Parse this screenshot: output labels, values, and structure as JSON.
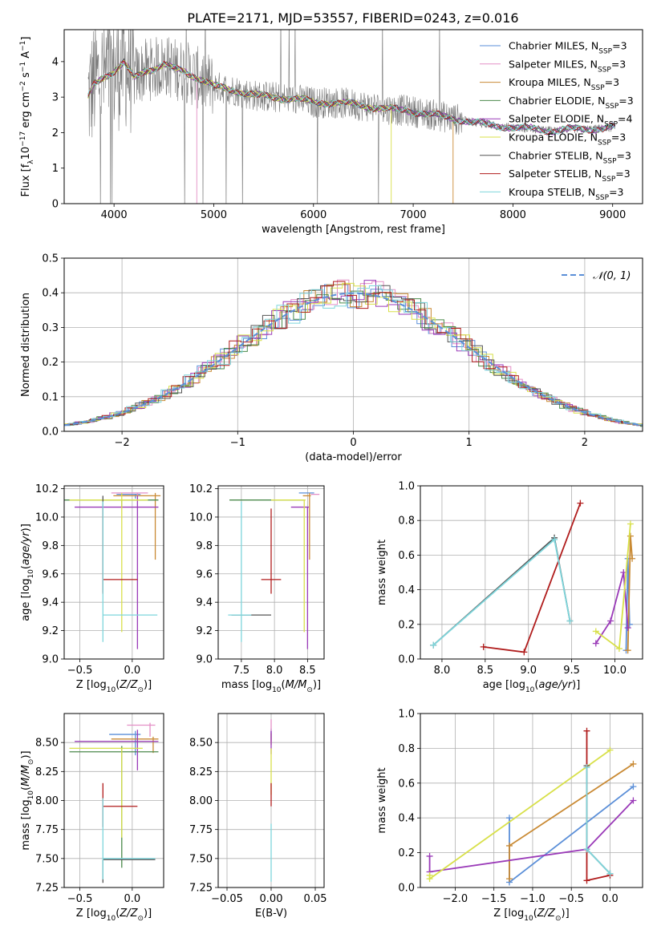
{
  "figure_title": "PLATE=2171, MJD=53557, FIBERID=0243, z=0.016",
  "colors": {
    "Chabrier MILES": "#5b8fd8",
    "Salpeter MILES": "#e48fc6",
    "Kroupa MILES": "#c98a34",
    "Chabrier ELODIE": "#4b8a4b",
    "Salpeter ELODIE": "#9a3ab8",
    "Kroupa ELODIE": "#d8e04a",
    "Chabrier STELIB": "#555555",
    "Salpeter STELIB": "#b01c1c",
    "Kroupa STELIB": "#7ed6dc",
    "data": "#7a7a7a"
  },
  "chart_data": [
    {
      "type": "line",
      "panel": "spectrum",
      "xlabel": "wavelength [Angstrom, rest frame]",
      "ylabel": "Flux [f_λ 10^-17 erg cm^-2 s^-1 A^-1]",
      "xlim": [
        3500,
        9300
      ],
      "ylim": [
        0,
        4.9
      ],
      "xticks": [
        4000,
        5000,
        6000,
        7000,
        8000,
        9000
      ],
      "yticks": [
        0,
        1,
        2,
        3,
        4
      ],
      "legend_position": "top-right",
      "legend": [
        {
          "name": "Chabrier MILES",
          "nssp": "3"
        },
        {
          "name": "Salpeter MILES",
          "nssp": "3"
        },
        {
          "name": "Kroupa MILES",
          "nssp": "3"
        },
        {
          "name": "Chabrier ELODIE",
          "nssp": "3"
        },
        {
          "name": "Salpeter ELODIE",
          "nssp": "4"
        },
        {
          "name": "Kroupa ELODIE",
          "nssp": "3"
        },
        {
          "name": "Chabrier STELIB",
          "nssp": "3"
        },
        {
          "name": "Salpeter STELIB",
          "nssp": "3"
        },
        {
          "name": "Kroupa STELIB",
          "nssp": "3"
        }
      ],
      "model_envelope": [
        [
          3740,
          3.0
        ],
        [
          3800,
          3.4
        ],
        [
          3900,
          3.6
        ],
        [
          4000,
          3.7
        ],
        [
          4100,
          3.95
        ],
        [
          4200,
          3.55
        ],
        [
          4300,
          3.75
        ],
        [
          4400,
          3.8
        ],
        [
          4500,
          3.9
        ],
        [
          4600,
          3.8
        ],
        [
          4700,
          3.75
        ],
        [
          4800,
          3.6
        ],
        [
          5000,
          3.3
        ],
        [
          5200,
          3.2
        ],
        [
          5400,
          3.05
        ],
        [
          5600,
          3.0
        ],
        [
          5800,
          2.95
        ],
        [
          6000,
          2.85
        ],
        [
          6200,
          2.85
        ],
        [
          6400,
          2.8
        ],
        [
          6600,
          2.72
        ],
        [
          6800,
          2.65
        ],
        [
          7000,
          2.6
        ],
        [
          7200,
          2.5
        ],
        [
          7400,
          2.4
        ],
        [
          7600,
          2.3
        ],
        [
          7800,
          2.2
        ],
        [
          8000,
          2.15
        ],
        [
          8200,
          2.1
        ],
        [
          8400,
          2.05
        ],
        [
          8600,
          2.1
        ],
        [
          8800,
          2.1
        ],
        [
          9020,
          2.15
        ]
      ],
      "truncations": [
        {
          "series": "Kroupa ELODIE",
          "x_end": 6780
        },
        {
          "series": "Kroupa MILES",
          "x_end": 7400
        },
        {
          "series": "Salpeter MILES",
          "x_end": 4830
        }
      ]
    },
    {
      "type": "histogram",
      "panel": "residuals",
      "xlabel": "(data-model)/error",
      "ylabel": "Normed distribution",
      "xlim": [
        -2.5,
        2.5
      ],
      "ylim": [
        0,
        0.5
      ],
      "xticks": [
        -2,
        -1,
        0,
        1,
        2
      ],
      "yticks": [
        0.0,
        0.1,
        0.2,
        0.3,
        0.4,
        0.5
      ],
      "grid": true,
      "legend_position": "top-right",
      "reference_curve": {
        "name": "𝒩(0, 1)",
        "mean": 0,
        "sigma": 1
      },
      "bin_width": 0.1
    },
    {
      "type": "scatter",
      "panel": "age-vs-Z",
      "xlabel": "Z [log10(Z/Z☉)]",
      "ylabel": "age  [log10(age/yr)]",
      "xlim": [
        -0.65,
        0.3
      ],
      "ylim": [
        9.0,
        10.22
      ],
      "xticks": [
        -0.5,
        0.0
      ],
      "yticks": [
        9.0,
        9.2,
        9.4,
        9.6,
        9.8,
        10.0,
        10.2
      ],
      "grid": true,
      "points": [
        {
          "series": "Chabrier MILES",
          "x": 0.03,
          "y": 10.16,
          "xerr": [
            0.18,
            0.05
          ],
          "yerr": [
            0.03,
            0.0
          ]
        },
        {
          "series": "Salpeter MILES",
          "x": 0.05,
          "y": 10.17,
          "xerr": [
            0.25,
            0.1
          ],
          "yerr": [
            0.02,
            0.0
          ]
        },
        {
          "series": "Kroupa MILES",
          "x": 0.22,
          "y": 10.15,
          "xerr": [
            0.4,
            0.05
          ],
          "yerr": [
            0.45,
            0.02
          ]
        },
        {
          "series": "Chabrier ELODIE",
          "x": -0.1,
          "y": 10.12,
          "xerr": [
            0.55,
            0.35
          ],
          "yerr": [
            0.05,
            0.0
          ]
        },
        {
          "series": "Salpeter ELODIE",
          "x": 0.05,
          "y": 10.07,
          "xerr": [
            0.6,
            0.2
          ],
          "yerr": [
            1.0,
            0.08
          ]
        },
        {
          "series": "Kroupa ELODIE",
          "x": -0.1,
          "y": 10.12,
          "xerr": [
            0.5,
            0.25
          ],
          "yerr": [
            0.93,
            0.05
          ]
        },
        {
          "series": "Chabrier STELIB",
          "x": -0.28,
          "y": 10.05,
          "xerr": [
            0.0,
            0.0
          ],
          "yerr": [
            0.58,
            0.1
          ]
        },
        {
          "series": "Salpeter STELIB",
          "x": -0.28,
          "y": 9.56,
          "xerr": [
            0.0,
            0.33
          ],
          "yerr": [
            0.1,
            0.5
          ]
        },
        {
          "series": "Kroupa STELIB",
          "x": -0.28,
          "y": 9.31,
          "xerr": [
            0.0,
            0.52
          ],
          "yerr": [
            0.19,
            0.8
          ]
        }
      ]
    },
    {
      "type": "scatter",
      "panel": "age-vs-mass",
      "xlabel": "mass [log10(M/M☉)]",
      "ylabel": "",
      "xlim": [
        7.15,
        8.75
      ],
      "ylim": [
        9.0,
        10.22
      ],
      "xticks": [
        7.5,
        8.0,
        8.5
      ],
      "yticks": [
        9.0,
        9.2,
        9.4,
        9.6,
        9.8,
        10.0,
        10.2
      ],
      "grid": true,
      "points": [
        {
          "series": "Chabrier MILES",
          "x": 8.57,
          "y": 10.17,
          "xerr": [
            0.2,
            0.03
          ],
          "yerr": [
            0.0,
            0.0
          ]
        },
        {
          "series": "Salpeter MILES",
          "x": 8.65,
          "y": 10.16,
          "xerr": [
            0.1,
            0.03
          ],
          "yerr": [
            0.0,
            0.0
          ]
        },
        {
          "series": "Kroupa MILES",
          "x": 8.53,
          "y": 10.15,
          "xerr": [
            0.1,
            0.02
          ],
          "yerr": [
            0.45,
            0.02
          ]
        },
        {
          "series": "Chabrier ELODIE",
          "x": 8.42,
          "y": 10.12,
          "xerr": [
            1.1,
            0.02
          ],
          "yerr": [
            0.0,
            0.0
          ]
        },
        {
          "series": "Salpeter ELODIE",
          "x": 8.5,
          "y": 10.07,
          "xerr": [
            0.25,
            0.02
          ],
          "yerr": [
            1.0,
            0.0
          ]
        },
        {
          "series": "Kroupa ELODIE",
          "x": 8.45,
          "y": 10.12,
          "xerr": [
            0.5,
            0.02
          ],
          "yerr": [
            0.93,
            0.0
          ]
        },
        {
          "series": "Chabrier STELIB",
          "x": 7.5,
          "y": 9.31,
          "xerr": [
            0.15,
            0.45
          ],
          "yerr": [
            0.0,
            0.0
          ]
        },
        {
          "series": "Salpeter STELIB",
          "x": 7.95,
          "y": 9.56,
          "xerr": [
            0.15,
            0.15
          ],
          "yerr": [
            0.1,
            0.5
          ]
        },
        {
          "series": "Kroupa STELIB",
          "x": 7.5,
          "y": 9.31,
          "xerr": [
            0.2,
            0.15
          ],
          "yerr": [
            0.19,
            0.8
          ]
        }
      ]
    },
    {
      "type": "line",
      "panel": "massweight-vs-age",
      "xlabel": "age  [log10(age/yr)]",
      "ylabel": "mass weight",
      "xlim": [
        7.75,
        10.32
      ],
      "ylim": [
        0,
        1.0
      ],
      "xticks": [
        8.0,
        8.5,
        9.0,
        9.5,
        10.0
      ],
      "yticks": [
        0.0,
        0.2,
        0.4,
        0.6,
        0.8,
        1.0
      ],
      "grid": true,
      "series": [
        {
          "name": "Chabrier MILES",
          "x": [
            10.13,
            10.15,
            10.17
          ],
          "y": [
            0.05,
            0.58,
            0.2
          ]
        },
        {
          "name": "Kroupa MILES",
          "x": [
            10.15,
            10.18,
            10.2
          ],
          "y": [
            0.05,
            0.71,
            0.58
          ]
        },
        {
          "name": "Salpeter ELODIE",
          "x": [
            9.78,
            9.95,
            10.1,
            10.15
          ],
          "y": [
            0.09,
            0.22,
            0.5,
            0.18
          ]
        },
        {
          "name": "Kroupa ELODIE",
          "x": [
            9.78,
            10.05,
            10.18
          ],
          "y": [
            0.16,
            0.06,
            0.78
          ]
        },
        {
          "name": "Chabrier STELIB",
          "x": [
            7.9,
            9.3,
            9.48
          ],
          "y": [
            0.08,
            0.7,
            0.22
          ]
        },
        {
          "name": "Salpeter STELIB",
          "x": [
            8.48,
            8.95,
            9.6
          ],
          "y": [
            0.07,
            0.04,
            0.9
          ]
        },
        {
          "name": "Kroupa STELIB",
          "x": [
            7.9,
            9.3,
            9.48
          ],
          "y": [
            0.08,
            0.69,
            0.22
          ]
        }
      ]
    },
    {
      "type": "scatter",
      "panel": "mass-vs-Z",
      "xlabel": "Z [log10(Z/Z☉)]",
      "ylabel": "mass [log10(M/M☉)]",
      "xlim": [
        -0.65,
        0.3
      ],
      "ylim": [
        7.25,
        8.75
      ],
      "xticks": [
        -0.5,
        0.0
      ],
      "yticks": [
        7.25,
        7.5,
        7.75,
        8.0,
        8.25,
        8.5
      ],
      "grid": true,
      "points": [
        {
          "series": "Chabrier MILES",
          "x": 0.03,
          "y": 8.57,
          "xerr": [
            0.25,
            0.05
          ],
          "yerr": [
            0.18,
            0.03
          ]
        },
        {
          "series": "Salpeter MILES",
          "x": 0.17,
          "y": 8.65,
          "xerr": [
            0.22,
            0.05
          ],
          "yerr": [
            0.1,
            0.02
          ]
        },
        {
          "series": "Kroupa MILES",
          "x": 0.2,
          "y": 8.53,
          "xerr": [
            0.4,
            0.05
          ],
          "yerr": [
            0.12,
            0.02
          ]
        },
        {
          "series": "Chabrier ELODIE",
          "x": -0.1,
          "y": 8.42,
          "xerr": [
            0.5,
            0.35
          ],
          "yerr": [
            1.0,
            0.05
          ]
        },
        {
          "series": "Salpeter ELODIE",
          "x": 0.05,
          "y": 8.51,
          "xerr": [
            0.6,
            0.2
          ],
          "yerr": [
            0.25,
            0.1
          ]
        },
        {
          "series": "Kroupa ELODIE",
          "x": -0.1,
          "y": 8.45,
          "xerr": [
            0.5,
            0.2
          ],
          "yerr": [
            0.77,
            0.0
          ]
        },
        {
          "series": "Chabrier STELIB",
          "x": -0.28,
          "y": 7.49,
          "xerr": [
            0.0,
            0.5
          ],
          "yerr": [
            0.2,
            0.0
          ]
        },
        {
          "series": "Salpeter STELIB",
          "x": -0.28,
          "y": 7.95,
          "xerr": [
            0.0,
            0.33
          ],
          "yerr": [
            0.18,
            0.2
          ]
        },
        {
          "series": "Kroupa STELIB",
          "x": -0.28,
          "y": 7.5,
          "xerr": [
            0.0,
            0.5
          ],
          "yerr": [
            0.18,
            0.52
          ]
        }
      ]
    },
    {
      "type": "scatter",
      "panel": "mass-vs-ebv",
      "xlabel": "E(B-V)",
      "ylabel": "",
      "xlim": [
        -0.06,
        0.06
      ],
      "ylim": [
        7.25,
        8.75
      ],
      "xticks": [
        -0.05,
        0.0,
        0.05
      ],
      "yticks": [
        7.25,
        7.5,
        7.75,
        8.0,
        8.25,
        8.5
      ],
      "grid": true,
      "points": [
        {
          "series": "Chabrier MILES",
          "x": 0.0,
          "y": 8.57,
          "yerr": [
            0.05,
            0.05
          ]
        },
        {
          "series": "Salpeter MILES",
          "x": 0.0,
          "y": 8.6,
          "yerr": [
            0.1,
            0.1
          ]
        },
        {
          "series": "Kroupa MILES",
          "x": 0.0,
          "y": 8.53,
          "yerr": [
            0.05,
            0.05
          ]
        },
        {
          "series": "Salpeter ELODIE",
          "x": 0.0,
          "y": 8.5,
          "yerr": [
            0.1,
            0.1
          ]
        },
        {
          "series": "Kroupa ELODIE",
          "x": 0.0,
          "y": 8.25,
          "yerr": [
            0.2,
            0.2
          ]
        },
        {
          "series": "Salpeter STELIB",
          "x": 0.0,
          "y": 8.05,
          "yerr": [
            0.1,
            0.1
          ]
        },
        {
          "series": "Kroupa STELIB",
          "x": 0.0,
          "y": 7.5,
          "yerr": [
            0.2,
            0.3
          ]
        }
      ]
    },
    {
      "type": "line",
      "panel": "massweight-vs-Z",
      "xlabel": "Z [log10(Z/Z☉)]",
      "ylabel": "mass weight",
      "xlim": [
        -2.45,
        0.42
      ],
      "ylim": [
        0,
        1.0
      ],
      "xticks": [
        -2.0,
        -1.5,
        -1.0,
        -0.5,
        0.0
      ],
      "yticks": [
        0.0,
        0.2,
        0.4,
        0.6,
        0.8,
        1.0
      ],
      "grid": true,
      "series": [
        {
          "name": "Chabrier MILES",
          "x": [
            -1.3,
            -1.3,
            0.3
          ],
          "y": [
            0.4,
            0.03,
            0.58
          ]
        },
        {
          "name": "Kroupa MILES",
          "x": [
            -1.3,
            -1.3,
            0.3
          ],
          "y": [
            0.05,
            0.24,
            0.71
          ]
        },
        {
          "name": "Salpeter ELODIE",
          "x": [
            -2.33,
            -2.33,
            -0.3,
            0.3
          ],
          "y": [
            0.18,
            0.09,
            0.22,
            0.5
          ]
        },
        {
          "name": "Kroupa ELODIE",
          "x": [
            -2.33,
            -2.33,
            0.0
          ],
          "y": [
            0.07,
            0.05,
            0.79
          ]
        },
        {
          "name": "Chabrier STELIB",
          "x": [
            -0.3,
            -0.3,
            0.0
          ],
          "y": [
            0.7,
            0.22,
            0.08
          ]
        },
        {
          "name": "Salpeter STELIB",
          "x": [
            -0.3,
            -0.3,
            0.0
          ],
          "y": [
            0.9,
            0.04,
            0.07
          ]
        },
        {
          "name": "Kroupa STELIB",
          "x": [
            -0.3,
            -0.3,
            0.0
          ],
          "y": [
            0.69,
            0.22,
            0.08
          ]
        }
      ]
    }
  ]
}
